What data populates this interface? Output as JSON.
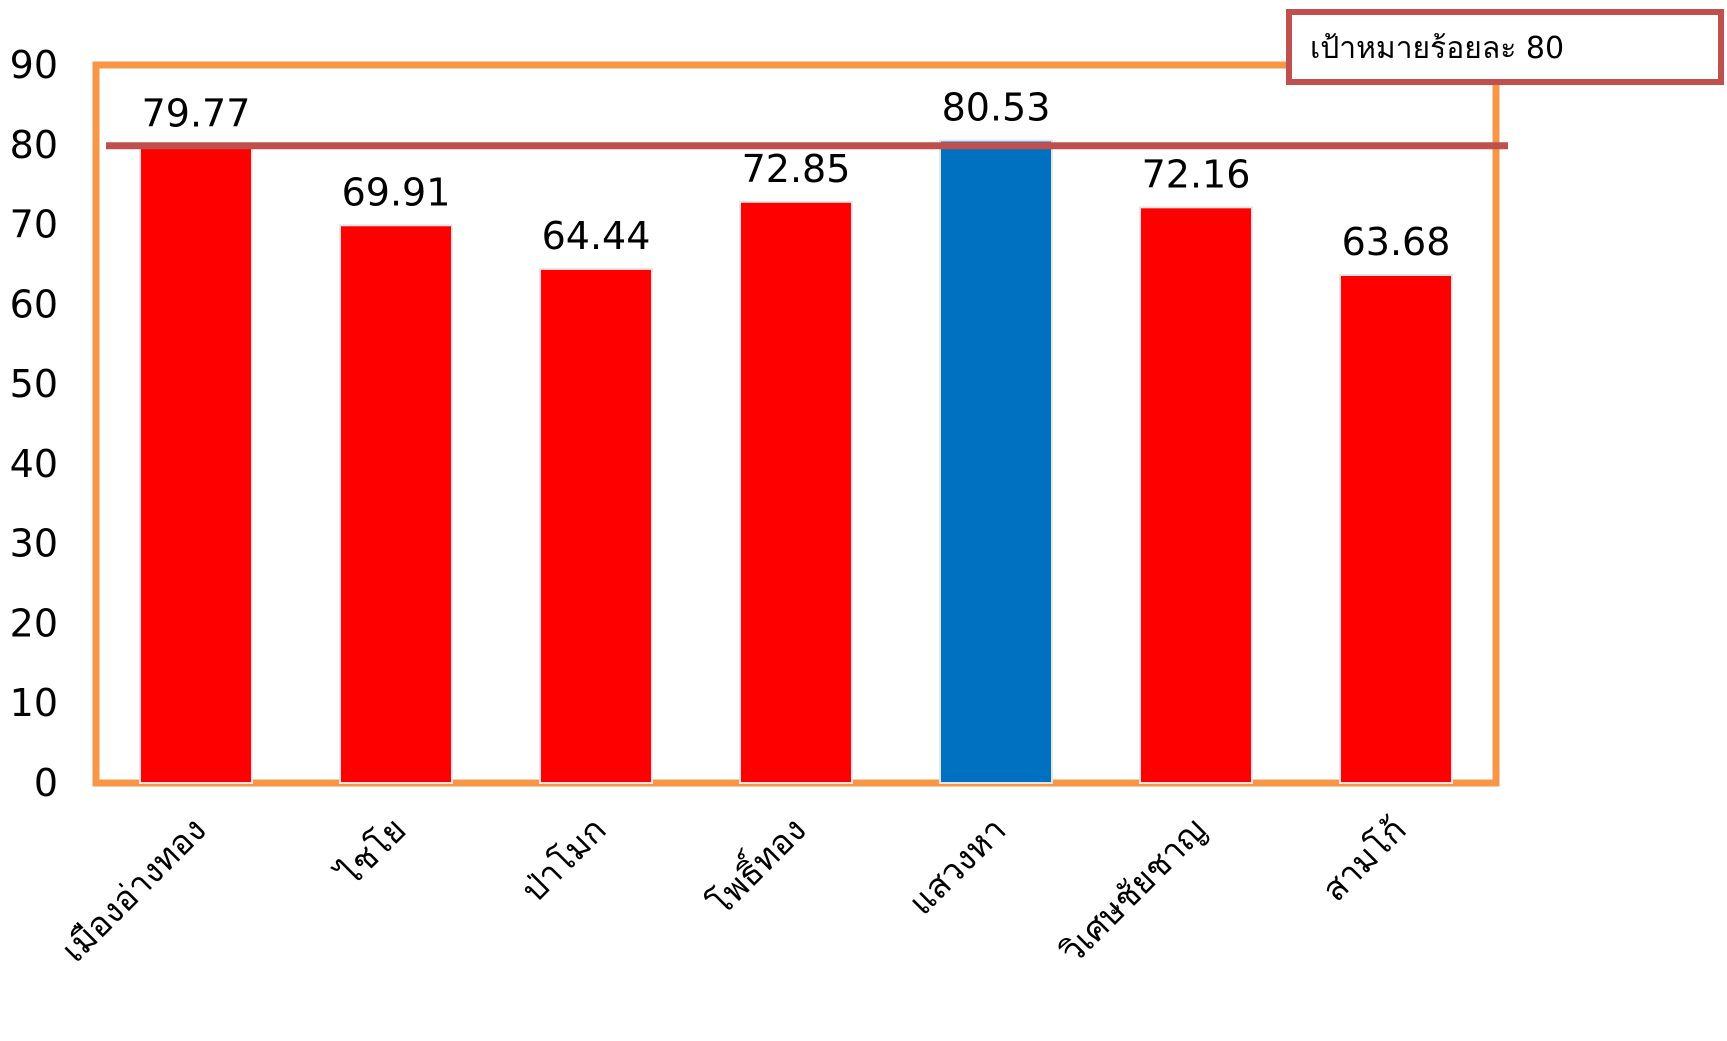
{
  "chart_data": {
    "type": "bar",
    "categories": [
      "เมืองอ่างทอง",
      "ไชโย",
      "ป่าโมก",
      "โพธิ์ทอง",
      "แสวงหา",
      "วิเศษชัยชาญ",
      "สามโก้"
    ],
    "values": [
      79.77,
      69.91,
      64.44,
      72.85,
      80.53,
      72.16,
      63.68
    ],
    "data_labels": [
      "79.77",
      "69.91",
      "64.44",
      "72.85",
      "80.53",
      "72.16",
      "63.68"
    ],
    "bar_colors": [
      "#ff0000",
      "#ff0000",
      "#ff0000",
      "#ff0000",
      "#0070c0",
      "#ff0000",
      "#ff0000"
    ],
    "ylim": [
      0,
      90
    ],
    "yticks": [
      0,
      10,
      20,
      30,
      40,
      50,
      60,
      70,
      80,
      90
    ],
    "target": {
      "value": 80,
      "label": "เป้าหมายร้อยละ 80",
      "color": "#c0504d"
    },
    "frame_color": "#f79646",
    "grid": false,
    "title": "",
    "xlabel": "",
    "ylabel": ""
  }
}
